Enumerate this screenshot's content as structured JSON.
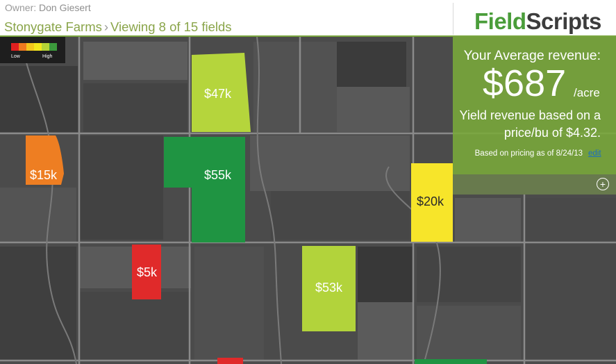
{
  "header": {
    "owner_label": "Owner:",
    "owner_name": "Don Giesert",
    "farm": "Stonygate Farms",
    "separator": "›",
    "viewing": "Viewing 8 of 15 fields",
    "logo_field": "Field",
    "logo_scripts": "Scripts"
  },
  "legend": {
    "low": "Low",
    "high": "High",
    "colors": [
      "#e02020",
      "#ee7a1f",
      "#f3c61c",
      "#f2e61c",
      "#b5d536",
      "#3c9a3c"
    ]
  },
  "fields": [
    {
      "label": "$47k",
      "color": "#b5d53c"
    },
    {
      "label": "$15k",
      "color": "#ee7e22"
    },
    {
      "label": "$55k",
      "color": "#1f9442"
    },
    {
      "label": "$20k",
      "color": "#f7e52a"
    },
    {
      "label": "$5k",
      "color": "#e02a2a"
    },
    {
      "label": "$53k",
      "color": "#b2d33b"
    },
    {
      "label": "",
      "color": "#e02a2a"
    },
    {
      "label": "",
      "color": "#1f9442"
    }
  ],
  "panel": {
    "heading": "Your Average revenue:",
    "amount": "$687",
    "unit": "/acre",
    "desc_line1": "Yield revenue based on a",
    "desc_line2": "price/bu of $4.32.",
    "note": "Based on pricing as of 8/24/13",
    "edit": "edit",
    "expand_icon": "plus-circle-icon"
  }
}
